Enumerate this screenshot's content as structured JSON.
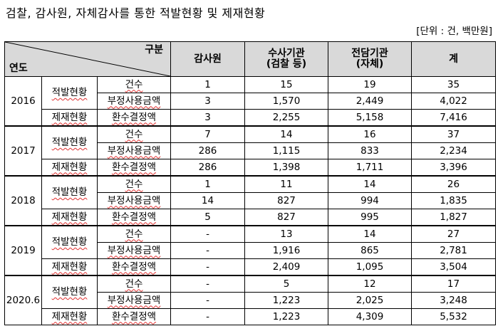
{
  "title": "검찰, 감사원, 자체감사를 통한 적발현황 및 제재현황",
  "unit": "[단위 : 건, 백만원]",
  "header": {
    "corner_top": "구분",
    "corner_bottom": "연도",
    "col1": "감사원",
    "col2_line1": "수사기관",
    "col2_line2": "(검찰 등)",
    "col3_line1": "전담기관",
    "col3_line2": "(자체)",
    "col4": "계"
  },
  "years": [
    {
      "year": "2016",
      "rows": [
        {
          "cat": "적발현황",
          "item": "건수",
          "v": [
            "1",
            "15",
            "19",
            "35"
          ]
        },
        {
          "item": "부정사용금액",
          "v": [
            "3",
            "1,570",
            "2,449",
            "4,022"
          ]
        },
        {
          "cat": "제재현황",
          "item": "환수결정액",
          "v": [
            "3",
            "2,255",
            "5,158",
            "7,416"
          ]
        }
      ]
    },
    {
      "year": "2017",
      "rows": [
        {
          "cat": "적발현황",
          "item": "건수",
          "v": [
            "7",
            "14",
            "16",
            "37"
          ]
        },
        {
          "item": "부정사용금액",
          "v": [
            "286",
            "1,115",
            "833",
            "2,234"
          ]
        },
        {
          "cat": "제재현황",
          "item": "환수결정액",
          "v": [
            "286",
            "1,398",
            "1,711",
            "3,396"
          ]
        }
      ]
    },
    {
      "year": "2018",
      "rows": [
        {
          "cat": "적발현황",
          "item": "건수",
          "v": [
            "1",
            "11",
            "14",
            "26"
          ]
        },
        {
          "item": "부정사용금액",
          "v": [
            "14",
            "827",
            "994",
            "1,835"
          ]
        },
        {
          "cat": "제재현황",
          "item": "환수결정액",
          "v": [
            "5",
            "827",
            "995",
            "1,827"
          ]
        }
      ]
    },
    {
      "year": "2019",
      "rows": [
        {
          "cat": "적발현황",
          "item": "건수",
          "v": [
            "-",
            "13",
            "14",
            "27"
          ]
        },
        {
          "item": "부정사용금액",
          "v": [
            "-",
            "1,916",
            "865",
            "2,781"
          ]
        },
        {
          "cat": "제재현황",
          "item": "환수결정액",
          "v": [
            "-",
            "2,409",
            "1,095",
            "3,504"
          ]
        }
      ]
    },
    {
      "year": "2020.6",
      "rows": [
        {
          "cat": "적발현황",
          "item": "건수",
          "v": [
            "-",
            "5",
            "12",
            "17"
          ]
        },
        {
          "item": "부정사용금액",
          "v": [
            "-",
            "1,223",
            "2,025",
            "3,248"
          ]
        },
        {
          "cat": "제재현황",
          "item": "환수결정액",
          "v": [
            "-",
            "1,223",
            "4,309",
            "5,532"
          ]
        }
      ]
    }
  ]
}
